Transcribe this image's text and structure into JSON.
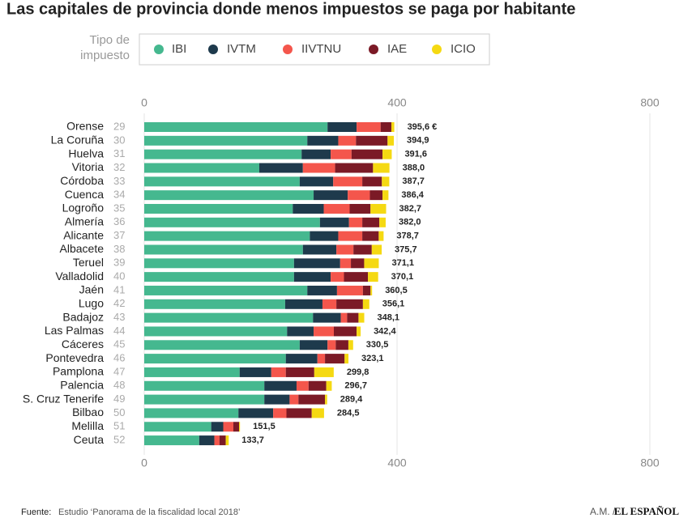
{
  "chart_data": {
    "type": "stacked_bar_horizontal",
    "title": "Las capitales de provincia donde menos impuestos se paga por habitante",
    "legend_title": "Tipo de impuesto",
    "categories": [
      "Orense",
      "La Coruña",
      "Huelva",
      "Vitoria",
      "Córdoba",
      "Cuenca",
      "Logroño",
      "Almería",
      "Alicante",
      "Albacete",
      "Teruel",
      "Valladolid",
      "Jaén",
      "Lugo",
      "Badajoz",
      "Las Palmas",
      "Cáceres",
      "Pontevedra",
      "Pamplona",
      "Palencia",
      "S. Cruz Tenerife",
      "Bilbao",
      "Melilla",
      "Ceuta"
    ],
    "ranks": [
      29,
      30,
      31,
      32,
      33,
      34,
      35,
      36,
      37,
      38,
      39,
      40,
      41,
      42,
      43,
      44,
      45,
      46,
      47,
      48,
      49,
      50,
      51,
      52
    ],
    "series": [
      {
        "name": "IBI",
        "color": "#45b88f",
        "values": [
          290,
          258,
          249,
          182,
          246,
          268,
          235,
          278,
          262,
          251,
          237,
          237,
          258,
          223,
          267,
          226,
          246,
          224,
          151,
          190,
          190,
          149,
          106,
          87
        ]
      },
      {
        "name": "IVTM",
        "color": "#1e3a4c",
        "values": [
          46,
          49,
          46,
          69,
          53,
          54,
          49,
          46,
          45,
          53,
          73,
          58,
          47,
          59,
          44,
          42,
          44,
          50,
          50,
          51,
          40,
          55,
          19,
          24
        ]
      },
      {
        "name": "IIVTNU",
        "color": "#f4564c",
        "values": [
          38,
          28,
          33,
          51,
          46,
          35,
          41,
          21,
          38,
          27,
          17,
          21,
          41,
          22,
          10,
          32,
          13,
          12,
          23,
          19,
          14,
          21,
          16,
          8
        ]
      },
      {
        "name": "IAE",
        "color": "#7b1a26",
        "values": [
          17,
          50,
          49,
          60,
          31,
          20,
          33,
          27,
          26,
          29,
          21,
          38,
          12,
          42,
          18,
          36,
          20,
          31,
          45,
          28,
          42,
          40,
          9,
          10
        ]
      },
      {
        "name": "ICIO",
        "color": "#f5d912",
        "values": [
          4.6,
          9.9,
          14.6,
          26,
          11.7,
          9.4,
          24.7,
          10,
          7.7,
          15.7,
          23.1,
          16.1,
          2.5,
          10.1,
          9.1,
          6.4,
          7.5,
          6.1,
          30.8,
          8.7,
          3.4,
          19.5,
          1.5,
          4.7
        ]
      }
    ],
    "totals": [
      395.6,
      394.9,
      391.6,
      388.0,
      387.7,
      386.4,
      382.7,
      382.0,
      378.7,
      375.7,
      371.1,
      370.1,
      360.5,
      356.1,
      348.1,
      342.4,
      330.5,
      323.1,
      299.8,
      296.7,
      289.4,
      284.5,
      151.5,
      133.7
    ],
    "total_labels": [
      "395,6 €",
      "394,9",
      "391,6",
      "388,0",
      "387,7",
      "386,4",
      "382,7",
      "382,0",
      "378,7",
      "375,7",
      "371,1",
      "370,1",
      "360,5",
      "356,1",
      "348,1",
      "342,4",
      "330,5",
      "323,1",
      "299,8",
      "296,7",
      "289,4",
      "284,5",
      "151,5",
      "133,7"
    ],
    "xlim": [
      0,
      800
    ],
    "xticks": [
      0,
      400,
      800
    ],
    "grid": true
  },
  "footer": {
    "source_label": "Fuente:",
    "source": "Estudio ‘Panorama de la fiscalidad local 2018’",
    "credit": "A.M. /",
    "brand": "EL ESPAÑOL"
  }
}
